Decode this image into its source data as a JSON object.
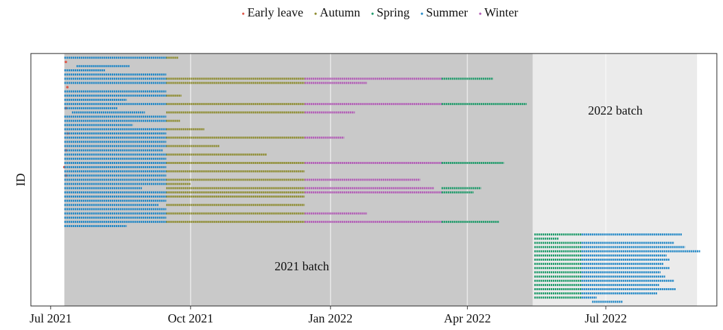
{
  "chart_data": {
    "type": "timeline",
    "y_label": "ID",
    "xlim": [
      "2021-06-18",
      "2022-09-12"
    ],
    "ylim": [
      0,
      60
    ],
    "xticks": [
      {
        "value": "2021-07-01",
        "label": "Jul 2021"
      },
      {
        "value": "2021-10-01",
        "label": "Oct 2021"
      },
      {
        "value": "2022-01-01",
        "label": "Jan 2022"
      },
      {
        "value": "2022-04-01",
        "label": "Apr 2022"
      },
      {
        "value": "2022-07-01",
        "label": "Jul 2022"
      }
    ],
    "grid": true,
    "legend": "top",
    "bands": [
      {
        "label": "2021 batch",
        "start": "2021-07-10",
        "end": "2022-05-14",
        "color": "#c9c9c9"
      },
      {
        "label": "2022 batch",
        "start": "2022-05-14",
        "end": "2022-08-30",
        "color": "#ebebeb"
      }
    ],
    "series": [
      {
        "name": "Early leave",
        "color": "#e0584a",
        "segments": [
          [
            2,
            "2021-07-11",
            "2021-07-11"
          ],
          [
            8,
            "2021-07-12",
            "2021-07-12"
          ],
          [
            13,
            "2021-07-11",
            "2021-07-11"
          ],
          [
            19,
            "2021-07-12",
            "2021-07-12"
          ],
          [
            23,
            "2021-07-11",
            "2021-07-11"
          ],
          [
            27,
            "2021-07-10",
            "2021-07-10"
          ],
          [
            29,
            "2021-07-11",
            "2021-07-11"
          ]
        ]
      },
      {
        "name": "Autumn",
        "color": "#8c8a2c",
        "segments": [
          [
            1,
            "2021-09-15",
            "2021-09-23"
          ],
          [
            6,
            "2021-09-15",
            "2021-12-15"
          ],
          [
            7,
            "2021-09-15",
            "2021-12-15"
          ],
          [
            10,
            "2021-09-15",
            "2021-09-25"
          ],
          [
            12,
            "2021-09-15",
            "2021-12-15"
          ],
          [
            14,
            "2021-09-15",
            "2021-12-15"
          ],
          [
            16,
            "2021-09-15",
            "2021-09-24"
          ],
          [
            18,
            "2021-09-15",
            "2021-10-10"
          ],
          [
            20,
            "2021-09-15",
            "2021-12-15"
          ],
          [
            22,
            "2021-09-15",
            "2021-10-20"
          ],
          [
            24,
            "2021-09-15",
            "2021-11-20"
          ],
          [
            26,
            "2021-09-15",
            "2021-12-15"
          ],
          [
            28,
            "2021-09-15",
            "2021-12-15"
          ],
          [
            30,
            "2021-09-15",
            "2021-12-15"
          ],
          [
            31,
            "2021-09-15",
            "2021-10-01"
          ],
          [
            32,
            "2021-09-15",
            "2021-12-15"
          ],
          [
            33,
            "2021-09-15",
            "2021-12-15"
          ],
          [
            34,
            "2021-09-15",
            "2021-12-15"
          ],
          [
            36,
            "2021-09-15",
            "2021-12-15"
          ],
          [
            38,
            "2021-09-15",
            "2021-12-15"
          ],
          [
            40,
            "2021-09-15",
            "2021-12-15"
          ]
        ]
      },
      {
        "name": "Spring",
        "color": "#1e9a6a",
        "segments": [
          [
            6,
            "2022-03-15",
            "2022-04-18"
          ],
          [
            12,
            "2022-03-15",
            "2022-05-10"
          ],
          [
            26,
            "2022-03-15",
            "2022-04-25"
          ],
          [
            32,
            "2022-03-15",
            "2022-04-10"
          ],
          [
            33,
            "2022-03-15",
            "2022-04-05"
          ],
          [
            40,
            "2022-03-15",
            "2022-04-22"
          ],
          [
            43,
            "2022-05-15",
            "2022-06-15"
          ],
          [
            44,
            "2022-05-15",
            "2022-05-31"
          ],
          [
            45,
            "2022-05-15",
            "2022-06-15"
          ],
          [
            46,
            "2022-05-15",
            "2022-06-15"
          ],
          [
            47,
            "2022-05-15",
            "2022-06-15"
          ],
          [
            48,
            "2022-05-15",
            "2022-06-15"
          ],
          [
            49,
            "2022-05-15",
            "2022-06-15"
          ],
          [
            50,
            "2022-05-15",
            "2022-06-15"
          ],
          [
            51,
            "2022-05-15",
            "2022-06-15"
          ],
          [
            52,
            "2022-05-15",
            "2022-06-15"
          ],
          [
            53,
            "2022-05-15",
            "2022-06-15"
          ],
          [
            54,
            "2022-05-15",
            "2022-06-15"
          ],
          [
            55,
            "2022-05-15",
            "2022-06-15"
          ],
          [
            56,
            "2022-05-15",
            "2022-06-15"
          ],
          [
            57,
            "2022-05-15",
            "2022-06-15"
          ],
          [
            58,
            "2022-05-15",
            "2022-06-15"
          ]
        ]
      },
      {
        "name": "Summer",
        "color": "#2388c6",
        "segments": [
          [
            1,
            "2021-07-10",
            "2021-09-15"
          ],
          [
            3,
            "2021-07-18",
            "2021-08-22"
          ],
          [
            4,
            "2021-07-10",
            "2021-08-06"
          ],
          [
            5,
            "2021-07-10",
            "2021-09-15"
          ],
          [
            6,
            "2021-07-10",
            "2021-09-15"
          ],
          [
            7,
            "2021-07-10",
            "2021-09-15"
          ],
          [
            9,
            "2021-07-10",
            "2021-09-15"
          ],
          [
            10,
            "2021-07-10",
            "2021-09-15"
          ],
          [
            11,
            "2021-07-10",
            "2021-08-20"
          ],
          [
            12,
            "2021-07-10",
            "2021-09-15"
          ],
          [
            13,
            "2021-07-10",
            "2021-08-14"
          ],
          [
            14,
            "2021-07-15",
            "2021-09-01"
          ],
          [
            15,
            "2021-07-10",
            "2021-09-15"
          ],
          [
            16,
            "2021-07-10",
            "2021-09-15"
          ],
          [
            17,
            "2021-07-10",
            "2021-08-24"
          ],
          [
            18,
            "2021-07-10",
            "2021-09-15"
          ],
          [
            19,
            "2021-07-10",
            "2021-09-15"
          ],
          [
            20,
            "2021-07-10",
            "2021-09-15"
          ],
          [
            21,
            "2021-07-10",
            "2021-09-15"
          ],
          [
            22,
            "2021-07-10",
            "2021-09-15"
          ],
          [
            23,
            "2021-07-10",
            "2021-09-13"
          ],
          [
            24,
            "2021-07-10",
            "2021-09-15"
          ],
          [
            25,
            "2021-07-10",
            "2021-09-15"
          ],
          [
            26,
            "2021-07-10",
            "2021-09-15"
          ],
          [
            27,
            "2021-07-10",
            "2021-09-15"
          ],
          [
            28,
            "2021-07-10",
            "2021-09-15"
          ],
          [
            29,
            "2021-07-10",
            "2021-09-15"
          ],
          [
            30,
            "2021-07-10",
            "2021-09-15"
          ],
          [
            31,
            "2021-07-10",
            "2021-09-15"
          ],
          [
            32,
            "2021-07-10",
            "2021-08-30"
          ],
          [
            33,
            "2021-07-10",
            "2021-09-15"
          ],
          [
            34,
            "2021-07-10",
            "2021-09-15"
          ],
          [
            35,
            "2021-07-10",
            "2021-09-15"
          ],
          [
            36,
            "2021-07-10",
            "2021-09-10"
          ],
          [
            37,
            "2021-07-10",
            "2021-09-15"
          ],
          [
            38,
            "2021-07-10",
            "2021-09-15"
          ],
          [
            39,
            "2021-07-10",
            "2021-09-15"
          ],
          [
            40,
            "2021-07-10",
            "2021-09-15"
          ],
          [
            41,
            "2021-07-10",
            "2021-08-20"
          ],
          [
            43,
            "2022-06-15",
            "2022-08-20"
          ],
          [
            45,
            "2022-06-15",
            "2022-08-15"
          ],
          [
            46,
            "2022-06-15",
            "2022-08-22"
          ],
          [
            47,
            "2022-06-15",
            "2022-09-01"
          ],
          [
            48,
            "2022-06-15",
            "2022-08-10"
          ],
          [
            49,
            "2022-06-15",
            "2022-08-12"
          ],
          [
            50,
            "2022-06-15",
            "2022-08-08"
          ],
          [
            51,
            "2022-06-15",
            "2022-08-12"
          ],
          [
            52,
            "2022-06-15",
            "2022-08-06"
          ],
          [
            53,
            "2022-06-15",
            "2022-08-09"
          ],
          [
            54,
            "2022-06-15",
            "2022-08-15"
          ],
          [
            55,
            "2022-06-15",
            "2022-08-05"
          ],
          [
            56,
            "2022-06-15",
            "2022-08-16"
          ],
          [
            57,
            "2022-06-15",
            "2022-08-04"
          ],
          [
            58,
            "2022-06-15",
            "2022-06-25"
          ],
          [
            59,
            "2022-06-22",
            "2022-07-12"
          ]
        ]
      },
      {
        "name": "Winter",
        "color": "#b25cb6",
        "segments": [
          [
            6,
            "2021-12-15",
            "2022-03-15"
          ],
          [
            7,
            "2021-12-15",
            "2022-01-25"
          ],
          [
            12,
            "2021-12-15",
            "2022-03-15"
          ],
          [
            14,
            "2021-12-15",
            "2022-01-17"
          ],
          [
            20,
            "2021-12-15",
            "2022-01-10"
          ],
          [
            26,
            "2021-12-15",
            "2022-03-15"
          ],
          [
            30,
            "2021-12-15",
            "2022-03-01"
          ],
          [
            32,
            "2021-12-15",
            "2022-03-10"
          ],
          [
            33,
            "2021-12-15",
            "2022-03-15"
          ],
          [
            38,
            "2021-12-15",
            "2022-01-25"
          ],
          [
            40,
            "2021-12-15",
            "2022-03-15"
          ]
        ]
      }
    ]
  }
}
